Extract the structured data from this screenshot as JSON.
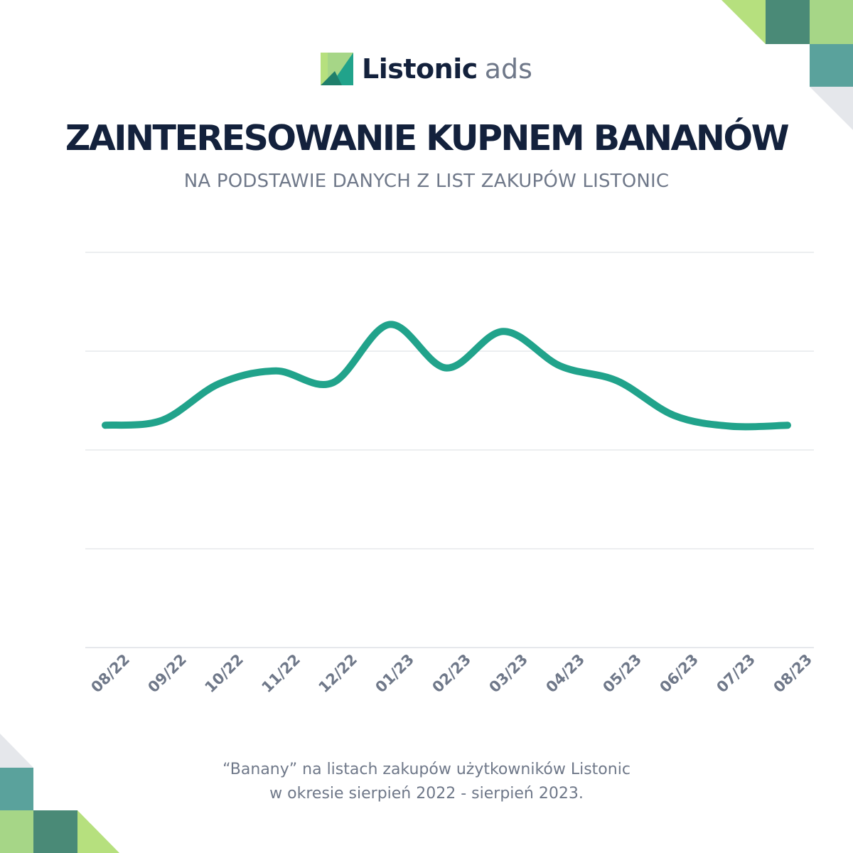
{
  "brand": {
    "name": "Listonic",
    "suffix": "ads",
    "colors": {
      "navy": "#13213c",
      "gray": "#6f7889",
      "line": "#21a38b",
      "green_light": "#a6d687",
      "green_lime": "#b6e07e",
      "green_dark": "#4a8a77",
      "teal": "#5aa29c",
      "gray_light": "#e5e7eb"
    }
  },
  "header": {
    "title": "ZAINTERESOWANIE KUPNEM BANANÓW",
    "subtitle": "NA PODSTAWIE DANYCH Z LIST ZAKUPÓW LISTONIC"
  },
  "chart_data": {
    "type": "line",
    "title": "ZAINTERESOWANIE KUPNEM BANANÓW",
    "subtitle": "NA PODSTAWIE DANYCH Z LIST ZAKUPÓW LISTONIC",
    "xlabel": "",
    "ylabel": "",
    "categories": [
      "08/22",
      "09/22",
      "10/22",
      "11/22",
      "12/22",
      "01/23",
      "02/23",
      "03/23",
      "04/23",
      "05/23",
      "06/23",
      "07/23",
      "08/23"
    ],
    "series": [
      {
        "values": [
          2.25,
          2.3,
          2.67,
          2.8,
          2.68,
          3.27,
          2.83,
          3.2,
          2.85,
          2.7,
          2.35,
          2.24,
          2.25
        ]
      }
    ],
    "ylim": [
      0,
      4
    ],
    "yticks": [
      0,
      1,
      2,
      3,
      4
    ],
    "ytick_labels_visible": false,
    "grid": true,
    "legend": "none"
  },
  "footer": {
    "line1": "“Banany” na listach zakupów użytkowników Listonic",
    "line2": "w okresie sierpień 2022 - sierpień 2023."
  }
}
